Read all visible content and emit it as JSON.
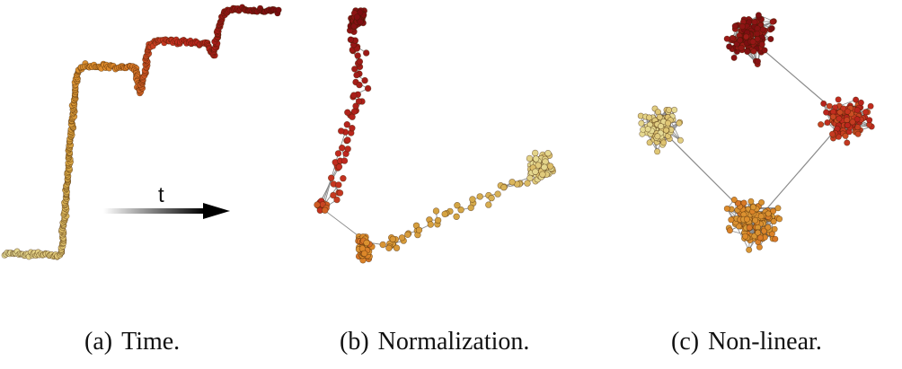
{
  "arrow_label": "t",
  "panels": [
    {
      "marker": "(a)",
      "title": "Time."
    },
    {
      "marker": "(b)",
      "title": "Normalization."
    },
    {
      "marker": "(c)",
      "title": "Non-linear."
    }
  ],
  "colors": {
    "early": "#e6dc96",
    "mid": "#d4a544",
    "orange": "#dd8a2a",
    "red": "#c0281e",
    "dark": "#7a0c10",
    "edge": "#8a8a8a",
    "arrow": "#000000"
  }
}
